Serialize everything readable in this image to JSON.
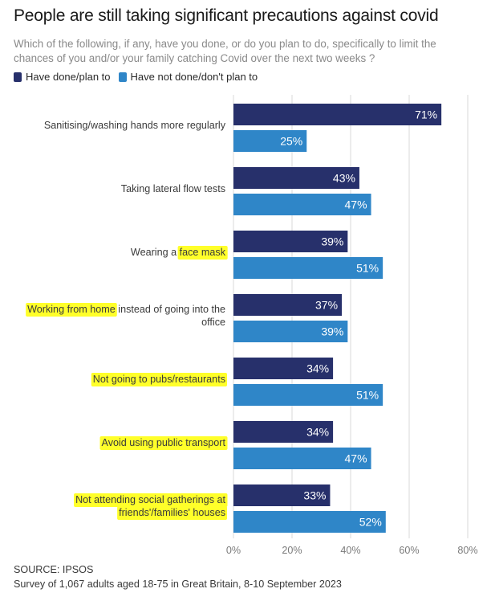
{
  "title": "People are still taking significant precautions against covid",
  "subtitle": "Which of the following, if any, have you done, or do you plan to do, specifically to limit the chances of you and/or your family catching Covid over the next two weeks ?",
  "legend": {
    "done": "Have done/plan to",
    "not_done": "Have not done/don't plan to"
  },
  "colors": {
    "done": "#27306b",
    "not_done": "#2f86c8",
    "highlight": "#ffff2a",
    "grid": "#d9d9d9"
  },
  "source": {
    "line1": "SOURCE: IPSOS",
    "line2": "Survey of 1,067 adults aged 18-75 in Great Britain, 8-10 September 2023"
  },
  "chart_data": {
    "type": "bar",
    "orientation": "horizontal",
    "categories": [
      {
        "lines": [
          [
            {
              "text": "Sanitising/washing hands more regularly",
              "highlight": false
            }
          ]
        ]
      },
      {
        "lines": [
          [
            {
              "text": "Taking lateral flow tests",
              "highlight": false
            }
          ]
        ]
      },
      {
        "lines": [
          [
            {
              "text": "Wearing a ",
              "highlight": false
            },
            {
              "text": "face mask",
              "highlight": true
            }
          ]
        ]
      },
      {
        "lines": [
          [
            {
              "text": "Working from home",
              "highlight": true
            },
            {
              "text": " instead of going into the",
              "highlight": false
            }
          ],
          [
            {
              "text": "office",
              "highlight": false
            }
          ]
        ]
      },
      {
        "lines": [
          [
            {
              "text": "Not going to pubs/restaurants",
              "highlight": true
            }
          ]
        ]
      },
      {
        "lines": [
          [
            {
              "text": "Avoid using public transport",
              "highlight": true
            }
          ]
        ]
      },
      {
        "lines": [
          [
            {
              "text": "Not attending social gatherings at",
              "highlight": true
            }
          ],
          [
            {
              "text": "friends'/families' houses",
              "highlight": true
            }
          ]
        ]
      }
    ],
    "series": [
      {
        "name": "Have done/plan to",
        "values": [
          71,
          43,
          39,
          37,
          34,
          34,
          33
        ]
      },
      {
        "name": "Have not done/don't plan to",
        "values": [
          25,
          47,
          51,
          39,
          51,
          47,
          52
        ]
      }
    ],
    "value_suffix": "%",
    "xlim": [
      0,
      80
    ],
    "xticks": [
      0,
      20,
      40,
      60,
      80
    ],
    "xtick_labels": [
      "0%",
      "20%",
      "40%",
      "60%",
      "80%"
    ],
    "grid": true
  }
}
